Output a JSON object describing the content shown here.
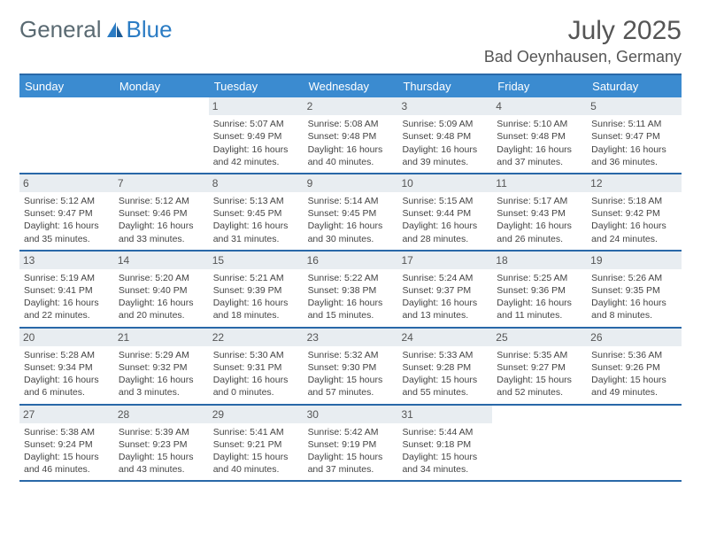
{
  "brand": {
    "part1": "General",
    "part2": "Blue"
  },
  "title": "July 2025",
  "location": "Bad Oeynhausen, Germany",
  "colors": {
    "header_bg": "#3b8bd0",
    "border": "#2968a8",
    "daynum_bg": "#e8edf1",
    "text": "#444444"
  },
  "weekdays": [
    "Sunday",
    "Monday",
    "Tuesday",
    "Wednesday",
    "Thursday",
    "Friday",
    "Saturday"
  ],
  "weeks": [
    [
      {
        "n": "",
        "sr": "",
        "ss": "",
        "dl": ""
      },
      {
        "n": "",
        "sr": "",
        "ss": "",
        "dl": ""
      },
      {
        "n": "1",
        "sr": "Sunrise: 5:07 AM",
        "ss": "Sunset: 9:49 PM",
        "dl": "Daylight: 16 hours and 42 minutes."
      },
      {
        "n": "2",
        "sr": "Sunrise: 5:08 AM",
        "ss": "Sunset: 9:48 PM",
        "dl": "Daylight: 16 hours and 40 minutes."
      },
      {
        "n": "3",
        "sr": "Sunrise: 5:09 AM",
        "ss": "Sunset: 9:48 PM",
        "dl": "Daylight: 16 hours and 39 minutes."
      },
      {
        "n": "4",
        "sr": "Sunrise: 5:10 AM",
        "ss": "Sunset: 9:48 PM",
        "dl": "Daylight: 16 hours and 37 minutes."
      },
      {
        "n": "5",
        "sr": "Sunrise: 5:11 AM",
        "ss": "Sunset: 9:47 PM",
        "dl": "Daylight: 16 hours and 36 minutes."
      }
    ],
    [
      {
        "n": "6",
        "sr": "Sunrise: 5:12 AM",
        "ss": "Sunset: 9:47 PM",
        "dl": "Daylight: 16 hours and 35 minutes."
      },
      {
        "n": "7",
        "sr": "Sunrise: 5:12 AM",
        "ss": "Sunset: 9:46 PM",
        "dl": "Daylight: 16 hours and 33 minutes."
      },
      {
        "n": "8",
        "sr": "Sunrise: 5:13 AM",
        "ss": "Sunset: 9:45 PM",
        "dl": "Daylight: 16 hours and 31 minutes."
      },
      {
        "n": "9",
        "sr": "Sunrise: 5:14 AM",
        "ss": "Sunset: 9:45 PM",
        "dl": "Daylight: 16 hours and 30 minutes."
      },
      {
        "n": "10",
        "sr": "Sunrise: 5:15 AM",
        "ss": "Sunset: 9:44 PM",
        "dl": "Daylight: 16 hours and 28 minutes."
      },
      {
        "n": "11",
        "sr": "Sunrise: 5:17 AM",
        "ss": "Sunset: 9:43 PM",
        "dl": "Daylight: 16 hours and 26 minutes."
      },
      {
        "n": "12",
        "sr": "Sunrise: 5:18 AM",
        "ss": "Sunset: 9:42 PM",
        "dl": "Daylight: 16 hours and 24 minutes."
      }
    ],
    [
      {
        "n": "13",
        "sr": "Sunrise: 5:19 AM",
        "ss": "Sunset: 9:41 PM",
        "dl": "Daylight: 16 hours and 22 minutes."
      },
      {
        "n": "14",
        "sr": "Sunrise: 5:20 AM",
        "ss": "Sunset: 9:40 PM",
        "dl": "Daylight: 16 hours and 20 minutes."
      },
      {
        "n": "15",
        "sr": "Sunrise: 5:21 AM",
        "ss": "Sunset: 9:39 PM",
        "dl": "Daylight: 16 hours and 18 minutes."
      },
      {
        "n": "16",
        "sr": "Sunrise: 5:22 AM",
        "ss": "Sunset: 9:38 PM",
        "dl": "Daylight: 16 hours and 15 minutes."
      },
      {
        "n": "17",
        "sr": "Sunrise: 5:24 AM",
        "ss": "Sunset: 9:37 PM",
        "dl": "Daylight: 16 hours and 13 minutes."
      },
      {
        "n": "18",
        "sr": "Sunrise: 5:25 AM",
        "ss": "Sunset: 9:36 PM",
        "dl": "Daylight: 16 hours and 11 minutes."
      },
      {
        "n": "19",
        "sr": "Sunrise: 5:26 AM",
        "ss": "Sunset: 9:35 PM",
        "dl": "Daylight: 16 hours and 8 minutes."
      }
    ],
    [
      {
        "n": "20",
        "sr": "Sunrise: 5:28 AM",
        "ss": "Sunset: 9:34 PM",
        "dl": "Daylight: 16 hours and 6 minutes."
      },
      {
        "n": "21",
        "sr": "Sunrise: 5:29 AM",
        "ss": "Sunset: 9:32 PM",
        "dl": "Daylight: 16 hours and 3 minutes."
      },
      {
        "n": "22",
        "sr": "Sunrise: 5:30 AM",
        "ss": "Sunset: 9:31 PM",
        "dl": "Daylight: 16 hours and 0 minutes."
      },
      {
        "n": "23",
        "sr": "Sunrise: 5:32 AM",
        "ss": "Sunset: 9:30 PM",
        "dl": "Daylight: 15 hours and 57 minutes."
      },
      {
        "n": "24",
        "sr": "Sunrise: 5:33 AM",
        "ss": "Sunset: 9:28 PM",
        "dl": "Daylight: 15 hours and 55 minutes."
      },
      {
        "n": "25",
        "sr": "Sunrise: 5:35 AM",
        "ss": "Sunset: 9:27 PM",
        "dl": "Daylight: 15 hours and 52 minutes."
      },
      {
        "n": "26",
        "sr": "Sunrise: 5:36 AM",
        "ss": "Sunset: 9:26 PM",
        "dl": "Daylight: 15 hours and 49 minutes."
      }
    ],
    [
      {
        "n": "27",
        "sr": "Sunrise: 5:38 AM",
        "ss": "Sunset: 9:24 PM",
        "dl": "Daylight: 15 hours and 46 minutes."
      },
      {
        "n": "28",
        "sr": "Sunrise: 5:39 AM",
        "ss": "Sunset: 9:23 PM",
        "dl": "Daylight: 15 hours and 43 minutes."
      },
      {
        "n": "29",
        "sr": "Sunrise: 5:41 AM",
        "ss": "Sunset: 9:21 PM",
        "dl": "Daylight: 15 hours and 40 minutes."
      },
      {
        "n": "30",
        "sr": "Sunrise: 5:42 AM",
        "ss": "Sunset: 9:19 PM",
        "dl": "Daylight: 15 hours and 37 minutes."
      },
      {
        "n": "31",
        "sr": "Sunrise: 5:44 AM",
        "ss": "Sunset: 9:18 PM",
        "dl": "Daylight: 15 hours and 34 minutes."
      },
      {
        "n": "",
        "sr": "",
        "ss": "",
        "dl": ""
      },
      {
        "n": "",
        "sr": "",
        "ss": "",
        "dl": ""
      }
    ]
  ]
}
